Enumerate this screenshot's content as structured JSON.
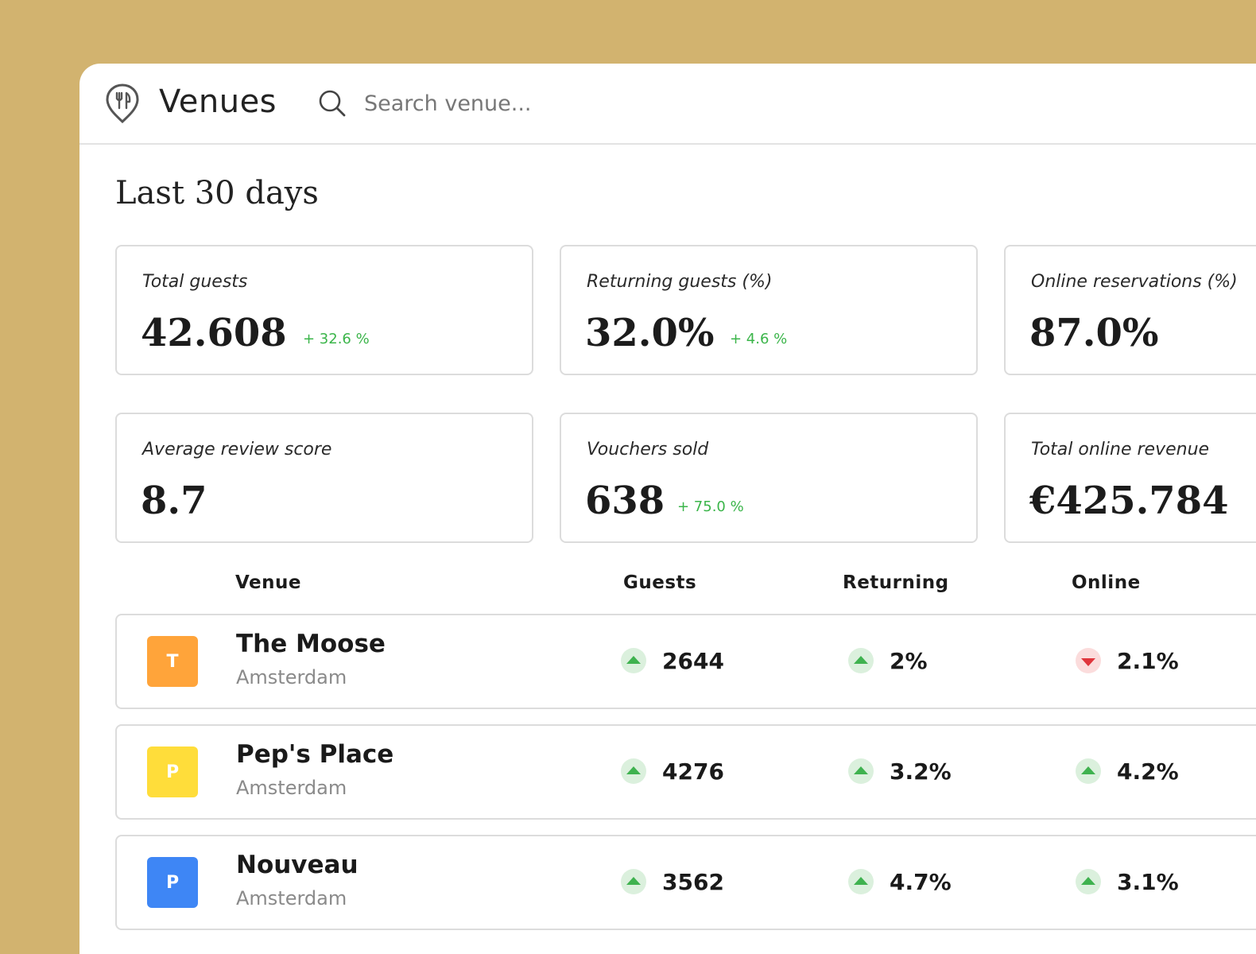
{
  "colors": {
    "background": "#D2B36F",
    "delta_positive": "#3bb54a",
    "trend_up": "#3fb24f",
    "trend_down": "#e0353c"
  },
  "header": {
    "logo_icon": "restaurant-pin-icon",
    "title": "Venues",
    "search": {
      "icon": "search-icon",
      "placeholder": "Search venue..."
    }
  },
  "period_title": "Last 30 days",
  "stats": [
    {
      "label": "Total guests",
      "value": "42.608",
      "delta": "+ 32.6 %"
    },
    {
      "label": "Returning guests (%)",
      "value": "32.0%",
      "delta": "+ 4.6 %"
    },
    {
      "label": "Online reservations (%)",
      "value": "87.0%",
      "delta": ""
    },
    {
      "label": "Average review score",
      "value": "8.7",
      "delta": ""
    },
    {
      "label": "Vouchers sold",
      "value": "638",
      "delta": "+ 75.0 %"
    },
    {
      "label": "Total online revenue",
      "value": "€425.784",
      "delta": ""
    }
  ],
  "table": {
    "columns": [
      "Venue",
      "Guests",
      "Returning",
      "Online"
    ],
    "rows": [
      {
        "initial": "T",
        "color": "#FFA43A",
        "name": "The Moose",
        "city": "Amsterdam",
        "guests": "2644",
        "guests_trend": "up",
        "returning": "2%",
        "returning_trend": "up",
        "online": "2.1%",
        "online_trend": "down"
      },
      {
        "initial": "P",
        "color": "#FFDD3A",
        "name": "Pep's Place",
        "city": "Amsterdam",
        "guests": "4276",
        "guests_trend": "up",
        "returning": "3.2%",
        "returning_trend": "up",
        "online": "4.2%",
        "online_trend": "up"
      },
      {
        "initial": "P",
        "color": "#3E86F5",
        "name": "Nouveau",
        "city": "Amsterdam",
        "guests": "3562",
        "guests_trend": "up",
        "returning": "4.7%",
        "returning_trend": "up",
        "online": "3.1%",
        "online_trend": "up"
      }
    ]
  }
}
